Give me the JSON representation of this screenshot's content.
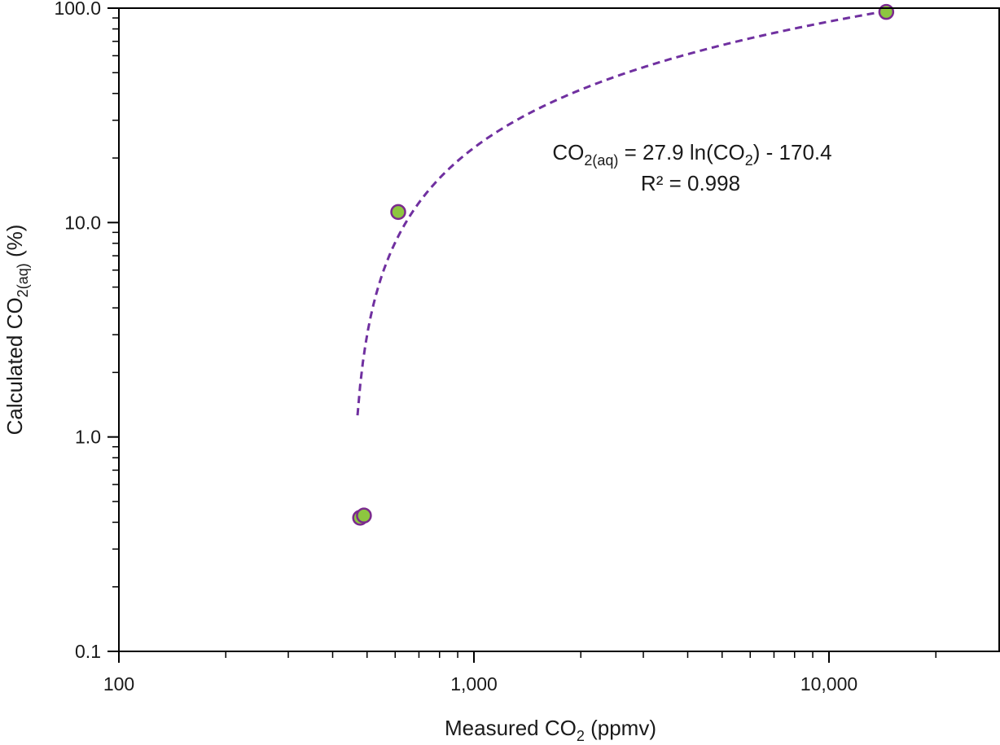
{
  "chart_data": {
    "type": "scatter",
    "x_scale": "log",
    "y_scale": "log",
    "xlim": [
      100,
      28000
    ],
    "ylim": [
      0.1,
      100
    ],
    "x_ticks": [
      {
        "value": 100,
        "label": "100"
      },
      {
        "value": 1000,
        "label": "1,000"
      },
      {
        "value": 10000,
        "label": "10,000"
      }
    ],
    "y_ticks": [
      {
        "value": 0.1,
        "label": "0.1"
      },
      {
        "value": 1,
        "label": "1.0"
      },
      {
        "value": 10,
        "label": "10.0"
      },
      {
        "value": 100,
        "label": "100.0"
      }
    ],
    "xlabel": {
      "main": "Measured CO",
      "sub": "2",
      "tail": " (ppmv)"
    },
    "ylabel": {
      "main": "Calculated CO",
      "sub": "2(aq)",
      "tail": " (%)"
    },
    "grid": false,
    "series": [
      {
        "points": [
          {
            "x": 478,
            "y": 0.42
          },
          {
            "x": 490,
            "y": 0.43
          },
          {
            "x": 612,
            "y": 11.2
          },
          {
            "x": 14500,
            "y": 96
          }
        ],
        "marker_fill": "#8dc63f",
        "marker_stroke": "#7b2a8e"
      }
    ],
    "trendline": {
      "type": "logarithmic",
      "slope": 27.9,
      "intercept": -170.4,
      "x_range": [
        470,
        14500
      ],
      "color": "#7030a0",
      "style": "dashed"
    },
    "annotation": {
      "equation": {
        "p1": "CO",
        "p1_sub": "2(aq)",
        "p2": " = 27.9 ln(CO",
        "p2_sub": "2",
        "p3": ") - 170.4"
      },
      "r2": "R² = 0.998"
    }
  }
}
